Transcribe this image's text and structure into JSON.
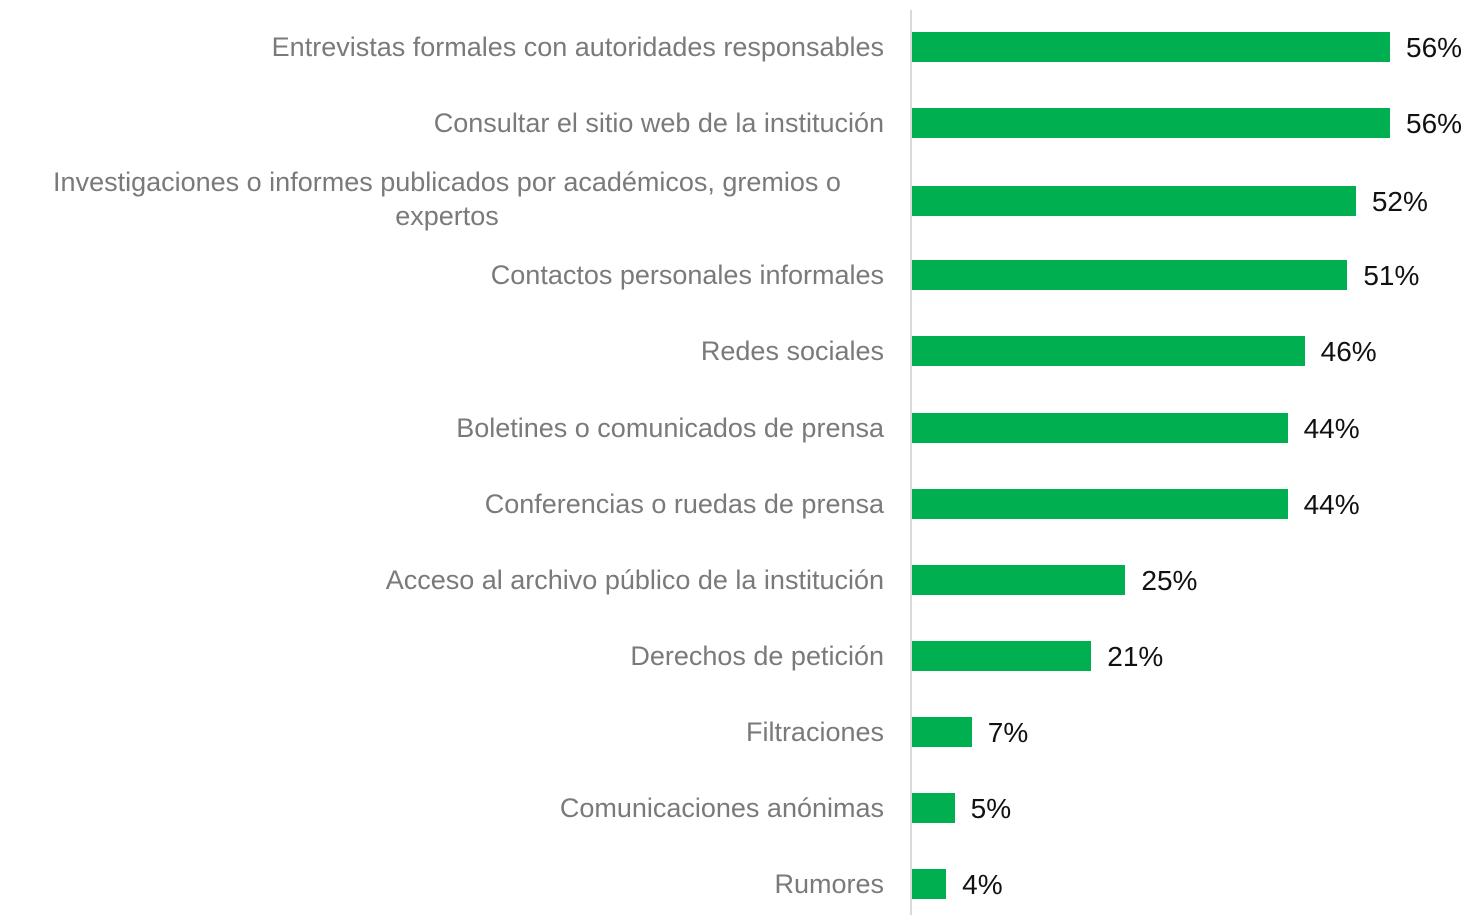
{
  "chart_data": {
    "type": "bar",
    "orientation": "horizontal",
    "color": "#00b050",
    "categories": [
      "Entrevistas formales con autoridades responsables",
      "Consultar el sitio web de la institución",
      "Investigaciones o informes publicados por académicos, gremios o expertos",
      "Contactos personales informales",
      "Redes sociales",
      "Boletines o comunicados de prensa",
      "Conferencias o ruedas de prensa",
      "Acceso al archivo público de la institución",
      "Derechos de petición",
      "Filtraciones",
      "Comunicaciones anónimas",
      "Rumores"
    ],
    "values": [
      56,
      56,
      52,
      51,
      46,
      44,
      44,
      25,
      21,
      7,
      5,
      4
    ],
    "value_labels": [
      "56%",
      "56%",
      "52%",
      "51%",
      "46%",
      "44%",
      "44%",
      "25%",
      "21%",
      "7%",
      "5%",
      "4%"
    ]
  }
}
